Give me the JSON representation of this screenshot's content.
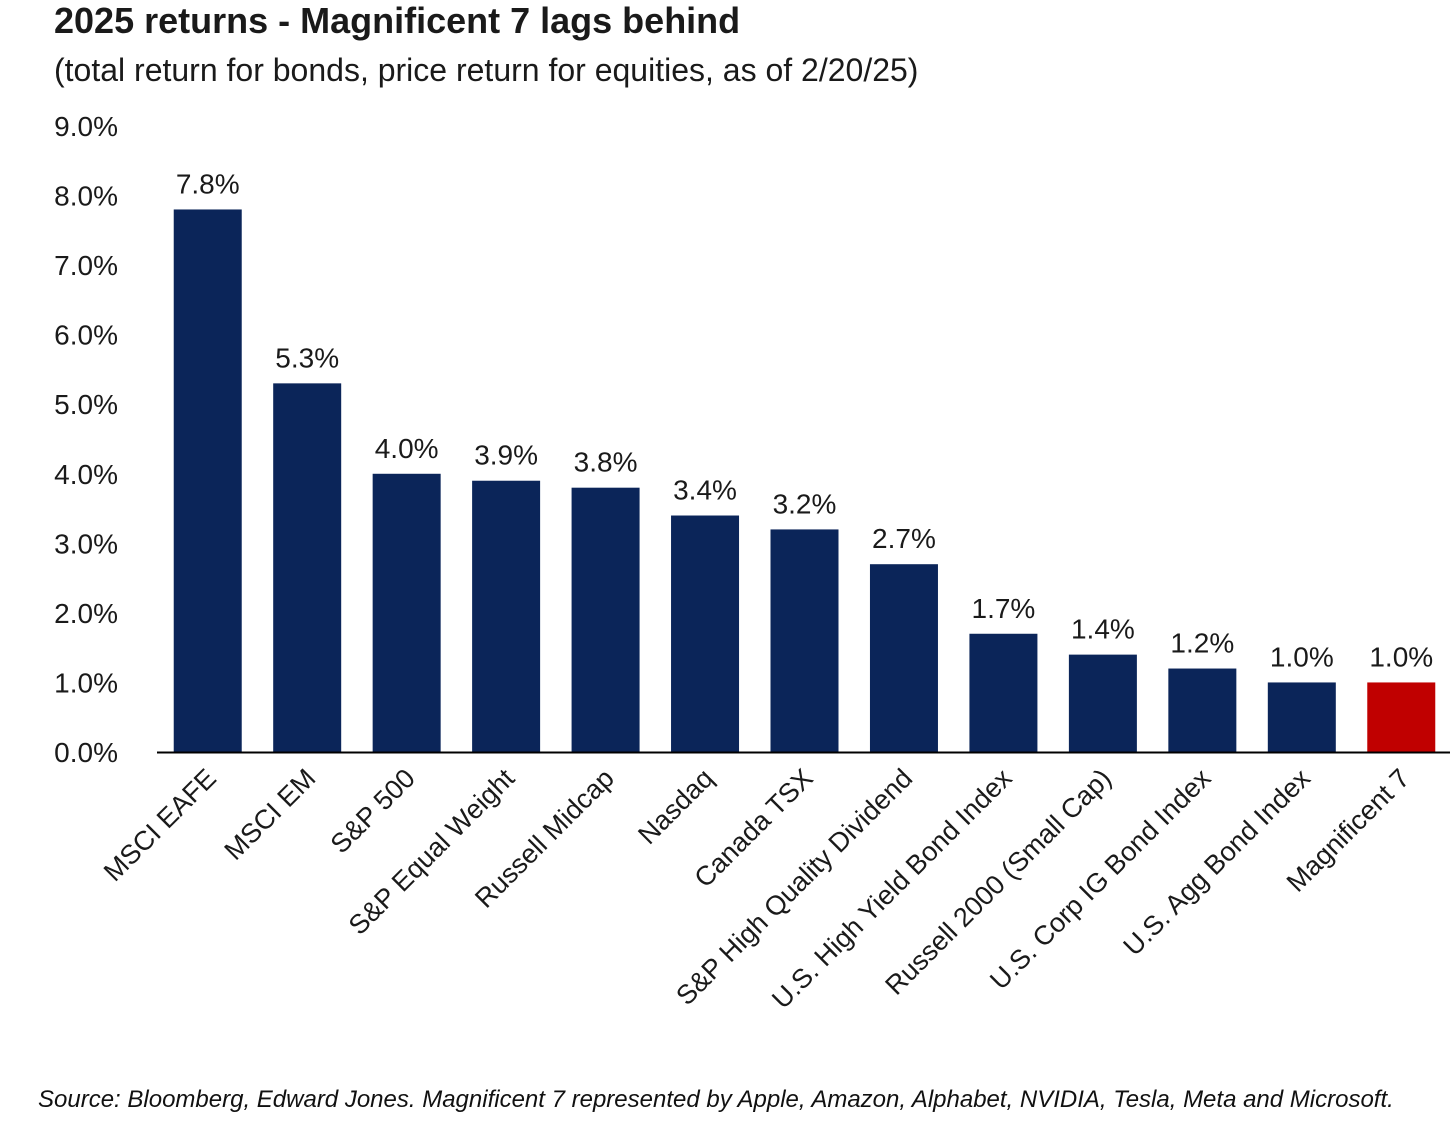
{
  "chart_data": {
    "type": "bar",
    "title": "2025 returns - Magnificent 7 lags behind",
    "subtitle": "(total return for bonds, price return for equities, as of 2/20/25)",
    "xlabel": "",
    "ylabel": "",
    "ylim": [
      0,
      9
    ],
    "yticks": [
      "0.0%",
      "1.0%",
      "2.0%",
      "3.0%",
      "4.0%",
      "5.0%",
      "6.0%",
      "7.0%",
      "8.0%",
      "9.0%"
    ],
    "grid": false,
    "legend": "none",
    "categories": [
      "MSCI EAFE",
      "MSCI EM",
      "S&P 500",
      "S&P Equal Weight",
      "Russell Midcap",
      "Nasdaq",
      "Canada TSX",
      "S&P High Quality Dividend",
      "U.S. High Yield Bond Index",
      "Russell 2000 (Small Cap)",
      "U.S. Corp IG Bond Index",
      "U.S. Agg Bond Index",
      "Magnificent 7"
    ],
    "values": [
      7.8,
      5.3,
      4.0,
      3.9,
      3.8,
      3.4,
      3.2,
      2.7,
      1.7,
      1.4,
      1.2,
      1.0,
      1.0
    ],
    "value_labels": [
      "7.8%",
      "5.3%",
      "4.0%",
      "3.9%",
      "3.8%",
      "3.4%",
      "3.2%",
      "2.7%",
      "1.7%",
      "1.4%",
      "1.2%",
      "1.0%",
      "1.0%"
    ],
    "bar_color": "#0b2559",
    "highlight_color": "#c00000",
    "highlight_index": 12
  },
  "source_note": "Source: Bloomberg, Edward Jones. Magnificent 7 represented by Apple, Amazon, Alphabet, NVIDIA, Tesla, Meta and Microsoft."
}
